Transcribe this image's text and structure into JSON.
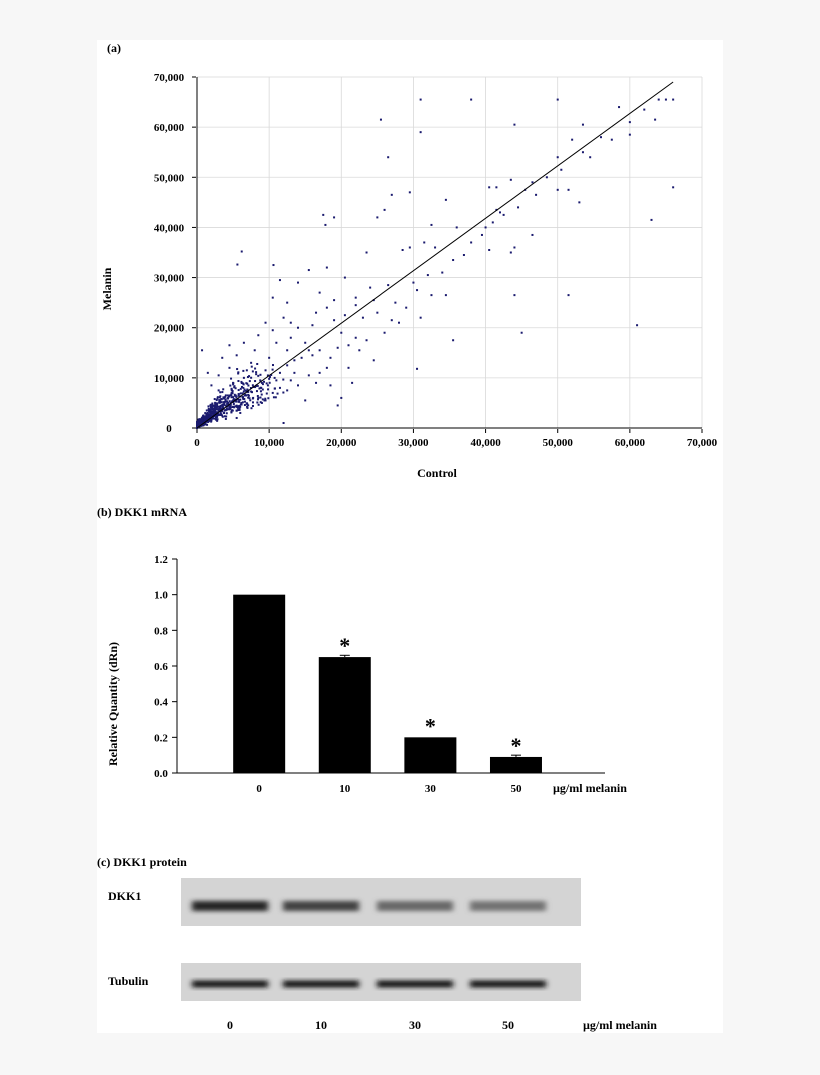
{
  "panel_a": {
    "label": "(a)",
    "chart_data": {
      "type": "scatter",
      "xlabel": "Control",
      "ylabel": "Melanin",
      "xlim": [
        0,
        70000
      ],
      "ylim": [
        0,
        70000
      ],
      "xticks": [
        "0",
        "10,000",
        "20,000",
        "30,000",
        "40,000",
        "50,000",
        "60,000",
        "70,000"
      ],
      "yticks": [
        "0",
        "10,000",
        "20,000",
        "30,000",
        "40,000",
        "50,000",
        "60,000",
        "70,000"
      ],
      "grid": true,
      "point_color": "#1a1a6e",
      "trend_line": [
        [
          0,
          0
        ],
        [
          66000,
          69000
        ]
      ],
      "points": [
        [
          31000,
          65500
        ],
        [
          38000,
          65500
        ],
        [
          50000,
          65500
        ],
        [
          64000,
          65500
        ],
        [
          65000,
          65500
        ],
        [
          66000,
          65500
        ],
        [
          25500,
          61500
        ],
        [
          31000,
          59000
        ],
        [
          44000,
          60500
        ],
        [
          58500,
          64000
        ],
        [
          60000,
          61000
        ],
        [
          63500,
          61500
        ],
        [
          53500,
          60500
        ],
        [
          52000,
          57500
        ],
        [
          60000,
          58500
        ],
        [
          26500,
          54000
        ],
        [
          50000,
          54000
        ],
        [
          54500,
          54000
        ],
        [
          66000,
          48000
        ],
        [
          27000,
          46500
        ],
        [
          29500,
          47000
        ],
        [
          34500,
          45500
        ],
        [
          40500,
          48000
        ],
        [
          41500,
          48000
        ],
        [
          43500,
          49500
        ],
        [
          45500,
          47500
        ],
        [
          46500,
          49000
        ],
        [
          50000,
          47500
        ],
        [
          51500,
          47500
        ],
        [
          53000,
          45000
        ],
        [
          17500,
          42500
        ],
        [
          19000,
          42000
        ],
        [
          17800,
          40500
        ],
        [
          25000,
          42000
        ],
        [
          26000,
          43500
        ],
        [
          32500,
          40500
        ],
        [
          36000,
          40000
        ],
        [
          41500,
          43500
        ],
        [
          40000,
          40000
        ],
        [
          42000,
          43000
        ],
        [
          63000,
          41500
        ],
        [
          46500,
          38500
        ],
        [
          6200,
          35200
        ],
        [
          5600,
          32600
        ],
        [
          10600,
          32500
        ],
        [
          23500,
          35000
        ],
        [
          28500,
          35500
        ],
        [
          29500,
          36000
        ],
        [
          31500,
          37000
        ],
        [
          33000,
          36000
        ],
        [
          40500,
          35500
        ],
        [
          43500,
          35000
        ],
        [
          44000,
          36000
        ],
        [
          11500,
          29500
        ],
        [
          14000,
          29000
        ],
        [
          15500,
          31500
        ],
        [
          18000,
          32000
        ],
        [
          20500,
          30000
        ],
        [
          24000,
          28000
        ],
        [
          26500,
          28500
        ],
        [
          30500,
          27500
        ],
        [
          32500,
          26500
        ],
        [
          34500,
          26500
        ],
        [
          44000,
          26500
        ],
        [
          51500,
          26500
        ],
        [
          19000,
          25500
        ],
        [
          22000,
          26000
        ],
        [
          12500,
          25000
        ],
        [
          10500,
          26000
        ],
        [
          31000,
          22000
        ],
        [
          27000,
          21500
        ],
        [
          28000,
          21000
        ],
        [
          45000,
          19000
        ],
        [
          61000,
          20500
        ],
        [
          35500,
          17500
        ],
        [
          30500,
          11800
        ],
        [
          16500,
          9000
        ],
        [
          18500,
          8500
        ],
        [
          20000,
          6000
        ],
        [
          19500,
          4500
        ],
        [
          21500,
          9000
        ],
        [
          15000,
          5500
        ],
        [
          12000,
          1000
        ],
        [
          9000,
          5000
        ],
        [
          18000,
          12000
        ],
        [
          16000,
          14500
        ],
        [
          22500,
          15500
        ],
        [
          20000,
          19000
        ],
        [
          14000,
          20000
        ],
        [
          15000,
          17000
        ],
        [
          17000,
          15500
        ],
        [
          13500,
          11000
        ],
        [
          11000,
          9500
        ],
        [
          24500,
          13500
        ],
        [
          26000,
          19000
        ],
        [
          23000,
          22000
        ],
        [
          21000,
          16500
        ],
        [
          19000,
          21500
        ],
        [
          12500,
          15500
        ],
        [
          13000,
          18000
        ],
        [
          10000,
          14000
        ],
        [
          9500,
          11500
        ],
        [
          11000,
          17000
        ],
        [
          8000,
          15500
        ],
        [
          7500,
          13000
        ],
        [
          6500,
          10000
        ],
        [
          5000,
          9000
        ],
        [
          4000,
          6500
        ],
        [
          3000,
          7500
        ],
        [
          2500,
          4000
        ],
        [
          1500,
          3000
        ],
        [
          900,
          2500
        ],
        [
          500,
          1500
        ],
        [
          300,
          800
        ],
        [
          1200,
          1200
        ],
        [
          2000,
          1500
        ],
        [
          2800,
          2300
        ],
        [
          3500,
          3500
        ],
        [
          4200,
          4800
        ],
        [
          5000,
          5500
        ],
        [
          6000,
          6300
        ],
        [
          7000,
          7200
        ],
        [
          8000,
          8200
        ],
        [
          9000,
          9000
        ],
        [
          10000,
          9800
        ],
        [
          11500,
          11000
        ],
        [
          12500,
          12500
        ],
        [
          13500,
          13500
        ],
        [
          14500,
          14000
        ],
        [
          15500,
          15500
        ],
        [
          700,
          15500
        ],
        [
          1500,
          11000
        ],
        [
          2000,
          8500
        ],
        [
          3000,
          10500
        ],
        [
          4500,
          12000
        ],
        [
          5500,
          14500
        ],
        [
          6500,
          17000
        ],
        [
          3500,
          14000
        ],
        [
          4500,
          16500
        ],
        [
          8500,
          18500
        ],
        [
          9500,
          21000
        ],
        [
          10500,
          19500
        ],
        [
          12000,
          22000
        ],
        [
          13000,
          21000
        ],
        [
          16500,
          23000
        ],
        [
          18000,
          24000
        ],
        [
          20500,
          22500
        ],
        [
          22000,
          24500
        ],
        [
          24500,
          25500
        ],
        [
          17000,
          27000
        ],
        [
          16000,
          20500
        ],
        [
          7000,
          4000
        ],
        [
          8500,
          6000
        ],
        [
          6000,
          3000
        ],
        [
          5500,
          2000
        ],
        [
          4000,
          1800
        ],
        [
          10500,
          7000
        ],
        [
          9500,
          5500
        ],
        [
          11500,
          8000
        ],
        [
          12500,
          7500
        ],
        [
          13000,
          9500
        ],
        [
          14000,
          8500
        ],
        [
          15500,
          10500
        ],
        [
          17000,
          11000
        ],
        [
          18500,
          14000
        ],
        [
          19500,
          16000
        ],
        [
          21000,
          12000
        ],
        [
          22000,
          18000
        ],
        [
          23500,
          17500
        ],
        [
          25000,
          23000
        ],
        [
          27500,
          25000
        ],
        [
          29000,
          24000
        ],
        [
          30000,
          29000
        ],
        [
          32000,
          30500
        ],
        [
          34000,
          31000
        ],
        [
          35500,
          33500
        ],
        [
          37000,
          34500
        ],
        [
          38000,
          37000
        ],
        [
          39500,
          38500
        ],
        [
          41000,
          41000
        ],
        [
          42500,
          42500
        ],
        [
          44500,
          44000
        ],
        [
          47000,
          46500
        ],
        [
          48500,
          50000
        ],
        [
          50500,
          51500
        ],
        [
          53500,
          55000
        ],
        [
          56000,
          58000
        ],
        [
          57500,
          57500
        ],
        [
          62000,
          63500
        ]
      ]
    }
  },
  "panel_b": {
    "label": "(b) DKK1 mRNA",
    "chart_data": {
      "type": "bar",
      "categories": [
        "0",
        "10",
        "30",
        "50"
      ],
      "values": [
        1.0,
        0.65,
        0.2,
        0.09
      ],
      "errors": [
        0.0,
        0.01,
        0.0,
        0.01
      ],
      "significance": [
        "",
        "*",
        "*",
        "*"
      ],
      "ylabel": "Relative Quantity (dRn)",
      "xunit": "µg/ml melanin",
      "ylim": [
        0,
        1.2
      ],
      "yticks": [
        "0.0",
        "0.2",
        "0.4",
        "0.6",
        "0.8",
        "1.0",
        "1.2"
      ],
      "bar_color": "#000000"
    }
  },
  "panel_c": {
    "label": "(c) DKK1 protein",
    "blot_rows": [
      {
        "name": "DKK1",
        "intensities": [
          0.85,
          0.7,
          0.5,
          0.45
        ]
      },
      {
        "name": "Tubulin",
        "intensities": [
          0.95,
          0.95,
          0.95,
          0.95
        ]
      }
    ],
    "lanes": [
      "0",
      "10",
      "30",
      "50"
    ],
    "unit": "µg/ml melanin"
  }
}
